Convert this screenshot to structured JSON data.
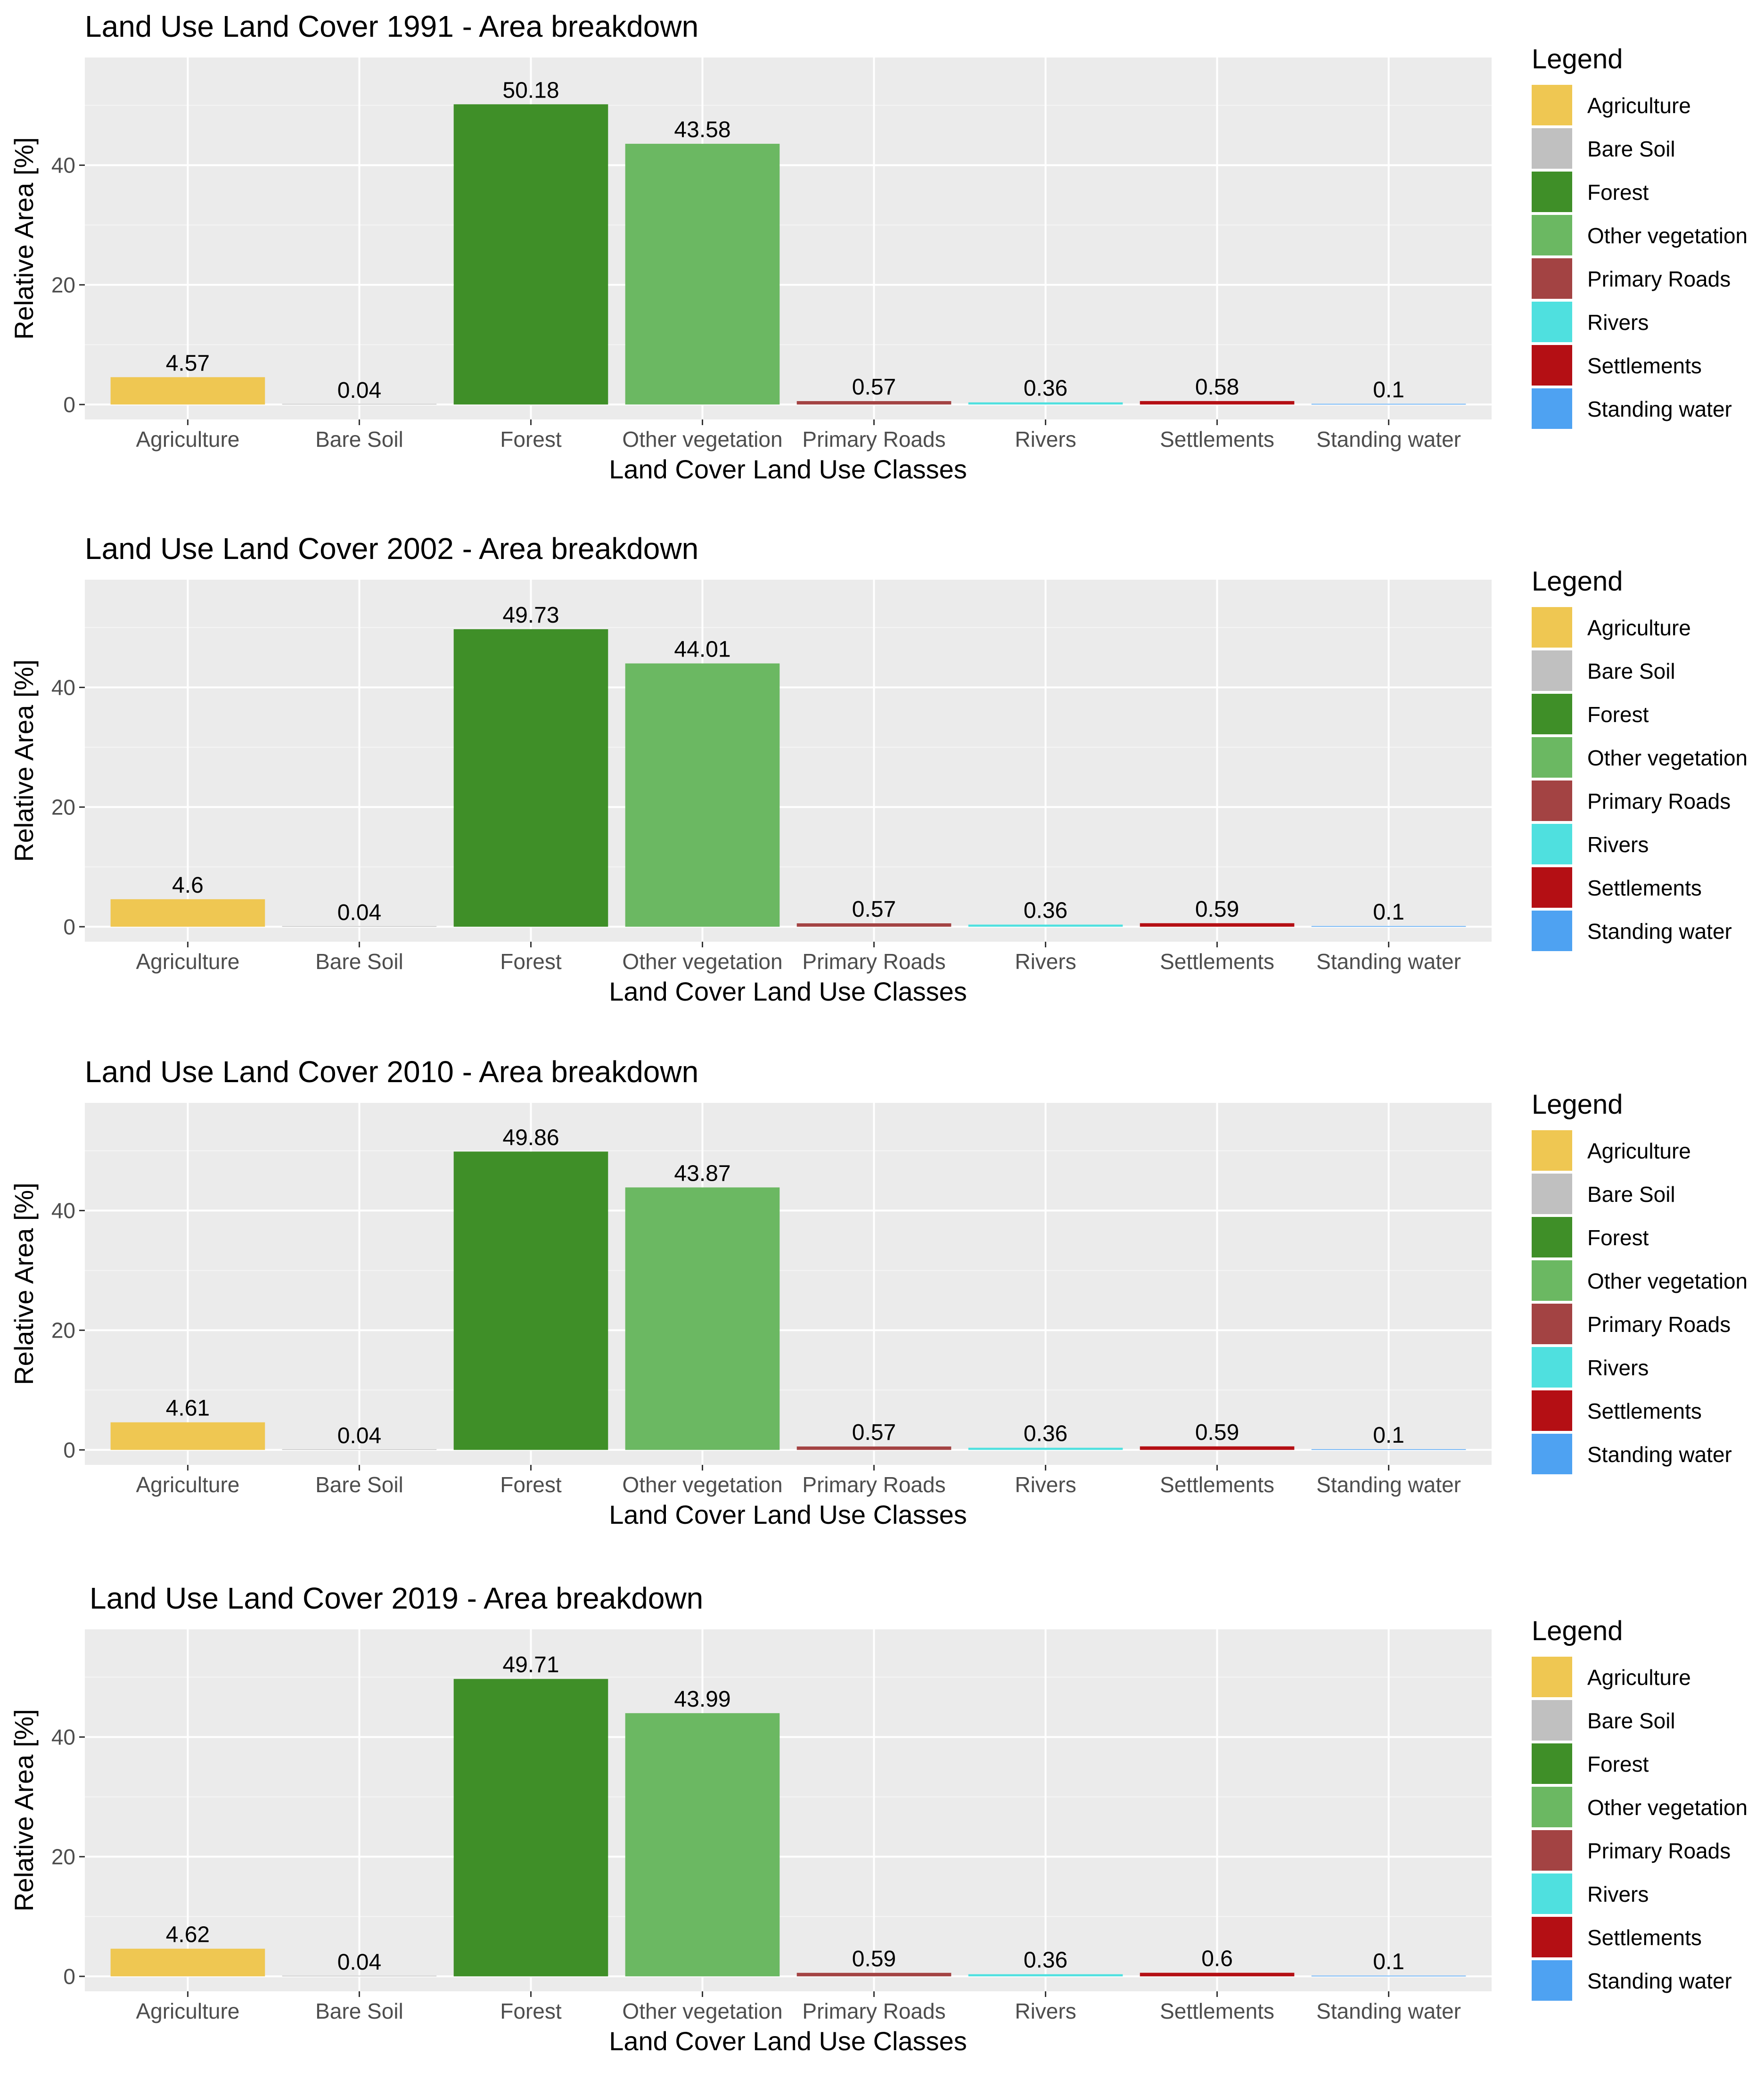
{
  "colors": {
    "Agriculture": "#efc752",
    "Bare Soil": "#c0c0c0",
    "Forest": "#3f8f28",
    "Other vegetation": "#6bb862",
    "Primary Roads": "#a34343",
    "Rivers": "#4fe0df",
    "Settlements": "#b40f14",
    "Standing water": "#4ea2f2"
  },
  "chart_data": [
    {
      "type": "bar",
      "title": "Land Use Land Cover 1991  - Area breakdown",
      "xlabel": "Land Cover Land Use Classes",
      "ylabel": "Relative Area [%]",
      "ylim": [
        -2.5,
        58
      ],
      "yticks": [
        "0",
        "20",
        "40"
      ],
      "categories": [
        "Agriculture",
        "Bare Soil",
        "Forest",
        "Other vegetation",
        "Primary Roads",
        "Rivers",
        "Settlements",
        "Standing water"
      ],
      "values": [
        4.57,
        0.04,
        50.18,
        43.58,
        0.57,
        0.36,
        0.58,
        0.1
      ],
      "labels": [
        "4.57",
        "0.04",
        "50.18",
        "43.58",
        "0.57",
        "0.36",
        "0.58",
        "0.1"
      ],
      "legend_title": "Legend",
      "legend_position": "right"
    },
    {
      "type": "bar",
      "title": "Land Use Land Cover 2002  - Area breakdown",
      "xlabel": "Land Cover Land Use Classes",
      "ylabel": "Relative Area [%]",
      "ylim": [
        -2.5,
        58
      ],
      "yticks": [
        "0",
        "20",
        "40"
      ],
      "categories": [
        "Agriculture",
        "Bare Soil",
        "Forest",
        "Other vegetation",
        "Primary Roads",
        "Rivers",
        "Settlements",
        "Standing water"
      ],
      "values": [
        4.6,
        0.04,
        49.73,
        44.01,
        0.57,
        0.36,
        0.59,
        0.1
      ],
      "labels": [
        "4.6",
        "0.04",
        "49.73",
        "44.01",
        "0.57",
        "0.36",
        "0.59",
        "0.1"
      ],
      "legend_title": "Legend",
      "legend_position": "right"
    },
    {
      "type": "bar",
      "title": "Land Use Land Cover 2010  - Area breakdown",
      "xlabel": "Land Cover Land Use Classes",
      "ylabel": "Relative Area [%]",
      "ylim": [
        -2.5,
        58
      ],
      "yticks": [
        "0",
        "20",
        "40"
      ],
      "categories": [
        "Agriculture",
        "Bare Soil",
        "Forest",
        "Other vegetation",
        "Primary Roads",
        "Rivers",
        "Settlements",
        "Standing water"
      ],
      "values": [
        4.61,
        0.04,
        49.86,
        43.87,
        0.57,
        0.36,
        0.59,
        0.1
      ],
      "labels": [
        "4.61",
        "0.04",
        "49.86",
        "43.87",
        "0.57",
        "0.36",
        "0.59",
        "0.1"
      ],
      "legend_title": "Legend",
      "legend_position": "right"
    },
    {
      "type": "bar",
      "title": "Land Use Land Cover 2019  - Area breakdown",
      "xlabel": "Land Cover Land Use Classes",
      "ylabel": "Relative Area [%]",
      "ylim": [
        -2.5,
        58
      ],
      "yticks": [
        "0",
        "20",
        "40"
      ],
      "categories": [
        "Agriculture",
        "Bare Soil",
        "Forest",
        "Other vegetation",
        "Primary Roads",
        "Rivers",
        "Settlements",
        "Standing water"
      ],
      "values": [
        4.62,
        0.04,
        49.71,
        43.99,
        0.59,
        0.36,
        0.6,
        0.1
      ],
      "labels": [
        "4.62",
        "0.04",
        "49.71",
        "43.99",
        "0.59",
        "0.36",
        "0.6",
        "0.1"
      ],
      "legend_title": "Legend",
      "legend_position": "right"
    }
  ]
}
